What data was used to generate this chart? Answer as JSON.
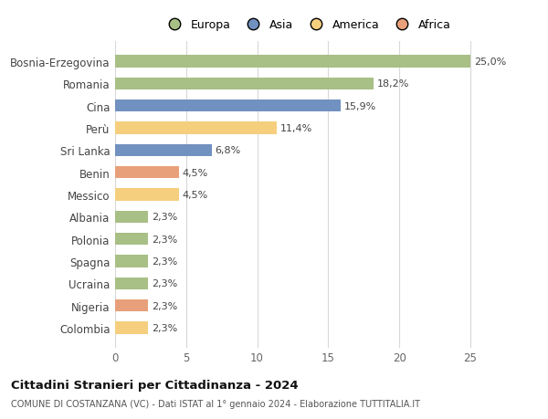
{
  "categories": [
    "Colombia",
    "Nigeria",
    "Ucraina",
    "Spagna",
    "Polonia",
    "Albania",
    "Messico",
    "Benin",
    "Sri Lanka",
    "Perù",
    "Cina",
    "Romania",
    "Bosnia-Erzegovina"
  ],
  "values": [
    2.3,
    2.3,
    2.3,
    2.3,
    2.3,
    2.3,
    4.5,
    4.5,
    6.8,
    11.4,
    15.9,
    18.2,
    25.0
  ],
  "colors": [
    "#f5cf7e",
    "#e8a07a",
    "#a8bf85",
    "#a8bf85",
    "#a8bf85",
    "#a8bf85",
    "#f5cf7e",
    "#e8a07a",
    "#7191c0",
    "#f5cf7e",
    "#7191c0",
    "#a8bf85",
    "#a8bf85"
  ],
  "legend_labels": [
    "Europa",
    "Asia",
    "America",
    "Africa"
  ],
  "legend_colors": [
    "#a8bf85",
    "#7191c0",
    "#f5cf7e",
    "#e8a07a"
  ],
  "value_labels": [
    "2,3%",
    "2,3%",
    "2,3%",
    "2,3%",
    "2,3%",
    "2,3%",
    "4,5%",
    "4,5%",
    "6,8%",
    "11,4%",
    "15,9%",
    "18,2%",
    "25,0%"
  ],
  "title": "Cittadini Stranieri per Cittadinanza - 2024",
  "subtitle": "COMUNE DI COSTANZANA (VC) - Dati ISTAT al 1° gennaio 2024 - Elaborazione TUTTITALIA.IT",
  "xlim": [
    0,
    27
  ],
  "xticks": [
    0,
    5,
    10,
    15,
    20,
    25
  ],
  "bg_color": "#ffffff",
  "bar_height": 0.55,
  "grid_color": "#d8d8d8"
}
